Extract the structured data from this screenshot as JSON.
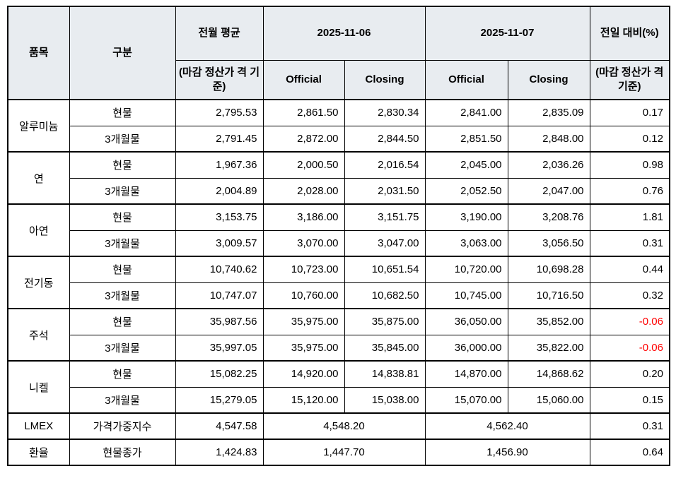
{
  "colors": {
    "header_bg": "#e8ecf0",
    "border": "#000000",
    "text": "#000000",
    "negative": "#ff0000"
  },
  "table": {
    "header": {
      "item": "품목",
      "category": "구분",
      "prev_avg_title": "전월 평균",
      "prev_avg_sub": "(마감 정산가 격 기준)",
      "date1": "2025-11-06",
      "date2": "2025-11-07",
      "official1": "Official",
      "closing1": "Closing",
      "official2": "Official",
      "closing2": "Closing",
      "change_title": "전일 대비(%)",
      "change_sub": "(마감 정산가 격 기준)"
    },
    "groups": [
      {
        "item": "알루미늄",
        "rows": [
          {
            "category": "현물",
            "prev_avg": "2,795.53",
            "d1_official": "2,861.50",
            "d1_closing": "2,830.34",
            "d2_official": "2,841.00",
            "d2_closing": "2,835.09",
            "change": "0.17"
          },
          {
            "category": "3개월물",
            "prev_avg": "2,791.45",
            "d1_official": "2,872.00",
            "d1_closing": "2,844.50",
            "d2_official": "2,851.50",
            "d2_closing": "2,848.00",
            "change": "0.12"
          }
        ]
      },
      {
        "item": "연",
        "rows": [
          {
            "category": "현물",
            "prev_avg": "1,967.36",
            "d1_official": "2,000.50",
            "d1_closing": "2,016.54",
            "d2_official": "2,045.00",
            "d2_closing": "2,036.26",
            "change": "0.98"
          },
          {
            "category": "3개월물",
            "prev_avg": "2,004.89",
            "d1_official": "2,028.00",
            "d1_closing": "2,031.50",
            "d2_official": "2,052.50",
            "d2_closing": "2,047.00",
            "change": "0.76"
          }
        ]
      },
      {
        "item": "아연",
        "rows": [
          {
            "category": "현물",
            "prev_avg": "3,153.75",
            "d1_official": "3,186.00",
            "d1_closing": "3,151.75",
            "d2_official": "3,190.00",
            "d2_closing": "3,208.76",
            "change": "1.81"
          },
          {
            "category": "3개월물",
            "prev_avg": "3,009.57",
            "d1_official": "3,070.00",
            "d1_closing": "3,047.00",
            "d2_official": "3,063.00",
            "d2_closing": "3,056.50",
            "change": "0.31"
          }
        ]
      },
      {
        "item": "전기동",
        "rows": [
          {
            "category": "현물",
            "prev_avg": "10,740.62",
            "d1_official": "10,723.00",
            "d1_closing": "10,651.54",
            "d2_official": "10,720.00",
            "d2_closing": "10,698.28",
            "change": "0.44"
          },
          {
            "category": "3개월물",
            "prev_avg": "10,747.07",
            "d1_official": "10,760.00",
            "d1_closing": "10,682.50",
            "d2_official": "10,745.00",
            "d2_closing": "10,716.50",
            "change": "0.32"
          }
        ]
      },
      {
        "item": "주석",
        "rows": [
          {
            "category": "현물",
            "prev_avg": "35,987.56",
            "d1_official": "35,975.00",
            "d1_closing": "35,875.00",
            "d2_official": "36,050.00",
            "d2_closing": "35,852.00",
            "change": "-0.06"
          },
          {
            "category": "3개월물",
            "prev_avg": "35,997.05",
            "d1_official": "35,975.00",
            "d1_closing": "35,845.00",
            "d2_official": "36,000.00",
            "d2_closing": "35,822.00",
            "change": "-0.06"
          }
        ]
      },
      {
        "item": "니켈",
        "rows": [
          {
            "category": "현물",
            "prev_avg": "15,082.25",
            "d1_official": "14,920.00",
            "d1_closing": "14,838.81",
            "d2_official": "14,870.00",
            "d2_closing": "14,868.62",
            "change": "0.20"
          },
          {
            "category": "3개월물",
            "prev_avg": "15,279.05",
            "d1_official": "15,120.00",
            "d1_closing": "15,038.00",
            "d2_official": "15,070.00",
            "d2_closing": "15,060.00",
            "change": "0.15"
          }
        ]
      }
    ],
    "summary": [
      {
        "item": "LMEX",
        "category": "가격가중지수",
        "prev_avg": "4,547.58",
        "d1": "4,548.20",
        "d2": "4,562.40",
        "change": "0.31"
      },
      {
        "item": "환율",
        "category": "현물종가",
        "prev_avg": "1,424.83",
        "d1": "1,447.70",
        "d2": "1,456.90",
        "change": "0.64"
      }
    ]
  }
}
